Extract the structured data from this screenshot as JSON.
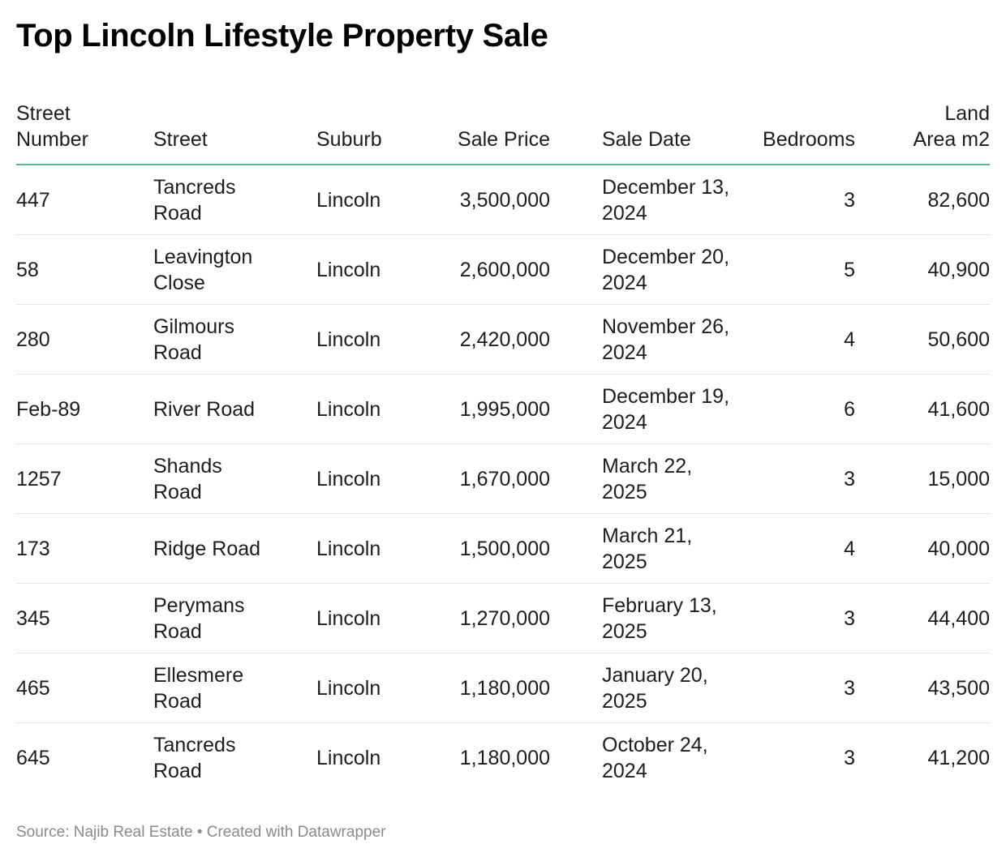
{
  "title": "Top Lincoln Lifestyle Property Sale",
  "columns": [
    "Street Number",
    "Street",
    "Suburb",
    "Sale Price",
    "Sale Date",
    "Bedrooms",
    "Land Area m2"
  ],
  "header": {
    "street_number_1": "Street",
    "street_number_2": "Number",
    "land_1": "Land",
    "land_2": "Area m2"
  },
  "rows": [
    {
      "num": "447",
      "street": "Tancreds Road",
      "suburb": "Lincoln",
      "price": "3,500,000",
      "date": "December 13, 2024",
      "bedrooms": "3",
      "land": "82,600"
    },
    {
      "num": "58",
      "street": "Leavington Close",
      "suburb": "Lincoln",
      "price": "2,600,000",
      "date": "December 20, 2024",
      "bedrooms": "5",
      "land": "40,900"
    },
    {
      "num": "280",
      "street": "Gilmours Road",
      "suburb": "Lincoln",
      "price": "2,420,000",
      "date": "November 26, 2024",
      "bedrooms": "4",
      "land": "50,600"
    },
    {
      "num": "Feb-89",
      "street": "River Road",
      "suburb": "Lincoln",
      "price": "1,995,000",
      "date": "December 19, 2024",
      "bedrooms": "6",
      "land": "41,600"
    },
    {
      "num": "1257",
      "street": "Shands Road",
      "suburb": "Lincoln",
      "price": "1,670,000",
      "date": "March 22, 2025",
      "bedrooms": "3",
      "land": "15,000"
    },
    {
      "num": "173",
      "street": "Ridge Road",
      "suburb": "Lincoln",
      "price": "1,500,000",
      "date": "March 21, 2025",
      "bedrooms": "4",
      "land": "40,000"
    },
    {
      "num": "345",
      "street": "Perymans Road",
      "suburb": "Lincoln",
      "price": "1,270,000",
      "date": "February 13, 2025",
      "bedrooms": "3",
      "land": "44,400"
    },
    {
      "num": "465",
      "street": "Ellesmere Road",
      "suburb": "Lincoln",
      "price": "1,180,000",
      "date": "January 20, 2025",
      "bedrooms": "3",
      "land": "43,500"
    },
    {
      "num": "645",
      "street": "Tancreds Road",
      "suburb": "Lincoln",
      "price": "1,180,000",
      "date": "October 24, 2024",
      "bedrooms": "3",
      "land": "41,200"
    }
  ],
  "footer": "Source: Najib Real Estate • Created with Datawrapper",
  "colors": {
    "header_rule": "#4fbc9f",
    "row_rule": "#e4e4e4",
    "footer_text": "#8a8a8a"
  }
}
